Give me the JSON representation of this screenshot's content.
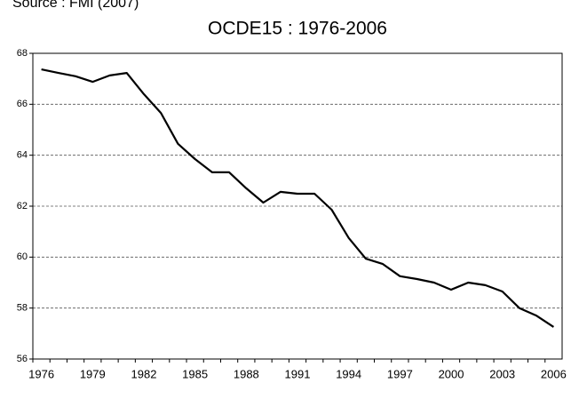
{
  "source": "Source : FMI (2007)",
  "chart_data": {
    "type": "line",
    "title": "OCDE15 : 1976-2006",
    "categories": [
      "1976",
      null,
      null,
      "1979",
      null,
      null,
      "1982",
      null,
      null,
      "1985",
      null,
      null,
      "1988",
      null,
      null,
      "1991",
      null,
      null,
      "1994",
      null,
      null,
      "1997",
      null,
      null,
      "2000",
      null,
      null,
      "2003",
      null,
      null,
      "2006"
    ],
    "series": [
      {
        "color": "#000000",
        "values": [
          67.37,
          67.23,
          67.1,
          66.88,
          67.13,
          67.23,
          66.4,
          65.66,
          64.45,
          63.85,
          63.33,
          63.33,
          62.7,
          62.14,
          62.56,
          62.49,
          62.49,
          61.86,
          60.75,
          59.94,
          59.73,
          59.25,
          59.14,
          59.0,
          58.72,
          59.0,
          58.9,
          58.65,
          58.0,
          57.7,
          57.26
        ]
      }
    ],
    "ylim": [
      56,
      68
    ],
    "yticks": [
      56,
      58,
      60,
      62,
      64,
      66,
      68
    ],
    "grid": true
  }
}
